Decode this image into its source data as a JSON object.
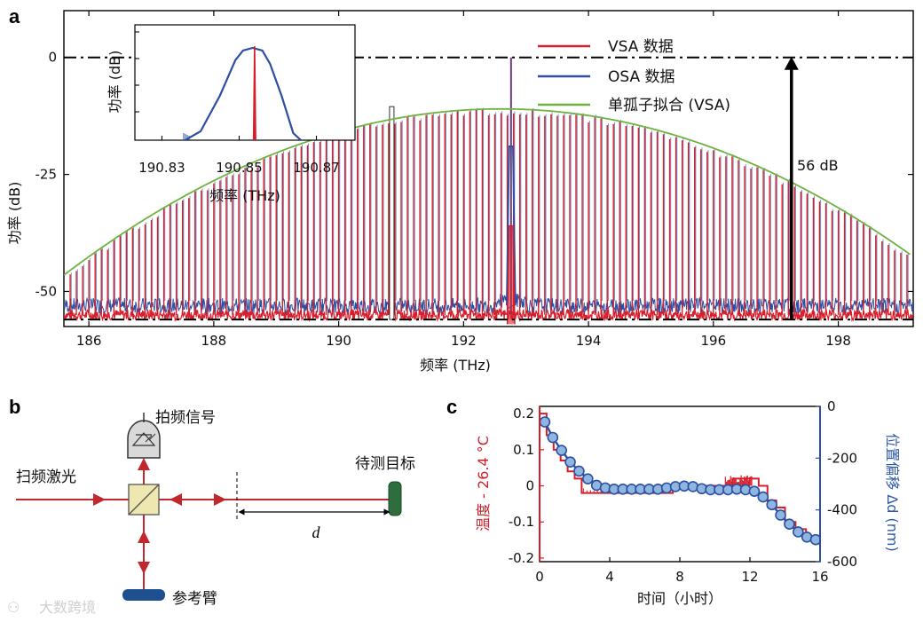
{
  "panels": {
    "a": "a",
    "b": "b",
    "c": "c"
  },
  "chart_data": [
    {
      "id": "a",
      "type": "line",
      "xlabel": "频率 (THz)",
      "ylabel": "功率 (dB)",
      "xlim": [
        185.6,
        199.2
      ],
      "ylim": [
        -57.5,
        10
      ],
      "xticks": [
        186,
        188,
        190,
        192,
        194,
        196,
        198
      ],
      "yticks": [
        0,
        -25,
        -50
      ],
      "series": [
        {
          "name": "VSA 数据",
          "color": "#d81e2b"
        },
        {
          "name": "OSA 数据",
          "color": "#2c4fa3"
        },
        {
          "name": "单孤子拟合 (VSA)",
          "color": "#6cb43f"
        }
      ],
      "comb": {
        "start": 185.7,
        "end": 199.1,
        "spacing": 0.1,
        "peak_x": 192.6,
        "peak_y": -11,
        "fit_width": 2.45,
        "pump_x": 192.76,
        "noise_floor_vsa": -55,
        "noise_floor_osa": -53
      },
      "reference_lines": [
        0,
        -56
      ],
      "annotation": {
        "text": "56 dB",
        "x": 197.25,
        "from": -56,
        "to": 0
      },
      "legend_position": "top-right",
      "inset": {
        "xlabel": "频率 (THz)",
        "ylabel": "功率 (dB)",
        "xlim": [
          190.823,
          190.88
        ],
        "xticks": [
          190.83,
          190.85,
          190.87
        ],
        "osa_peak_x": 190.853,
        "vsa_line_x": 190.854
      }
    },
    {
      "id": "c",
      "type": "line",
      "xlabel": "时间（小时）",
      "ylabel_left": "温度 - 26.4 °C",
      "ylabel_right": "位置偏移 Δd (nm)",
      "xlim": [
        0,
        16
      ],
      "ylim_left": [
        -0.21,
        0.22
      ],
      "ylim_right": [
        -600,
        0
      ],
      "xticks": [
        0,
        4,
        8,
        12,
        16
      ],
      "yticks_left": [
        0.2,
        0.1,
        0,
        -0.1,
        -0.2
      ],
      "yticks_right": [
        0,
        -200,
        -400,
        -600
      ],
      "series": [
        {
          "name": "温度",
          "axis": "left",
          "color": "#d81e2b",
          "x": [
            0,
            0.4,
            0.8,
            1.2,
            1.6,
            2.0,
            2.4,
            2.8,
            3.2,
            6.0,
            7.6,
            8.6,
            10.5,
            11.0,
            12.0,
            12.5,
            13.0,
            13.5,
            14.0,
            14.6,
            15.2,
            15.7
          ],
          "y": [
            0.2,
            0.14,
            0.1,
            0.07,
            0.04,
            0.02,
            -0.02,
            -0.02,
            -0.02,
            -0.02,
            0.0,
            0.0,
            0.0,
            0.02,
            0.02,
            0.0,
            -0.04,
            -0.06,
            -0.1,
            -0.12,
            -0.14,
            -0.16
          ]
        },
        {
          "name": "位置偏移",
          "axis": "right",
          "color": "#2c4fa3",
          "x": [
            0.3,
            0.75,
            1.25,
            1.75,
            2.25,
            2.75,
            3.25,
            3.75,
            4.25,
            4.75,
            5.25,
            5.75,
            6.25,
            6.75,
            7.25,
            7.75,
            8.25,
            8.75,
            9.25,
            9.75,
            10.25,
            10.75,
            11.25,
            11.75,
            12.25,
            12.75,
            13.25,
            13.75,
            14.25,
            14.75,
            15.25,
            15.75
          ],
          "y": [
            -60,
            -120,
            -170,
            -215,
            -250,
            -280,
            -305,
            -315,
            -320,
            -320,
            -320,
            -320,
            -320,
            -320,
            -315,
            -310,
            -308,
            -310,
            -318,
            -322,
            -322,
            -322,
            -320,
            -322,
            -328,
            -350,
            -380,
            -420,
            -455,
            -485,
            -505,
            -515
          ]
        }
      ]
    }
  ],
  "diagram_b": {
    "beat_signal": "拍频信号",
    "swept_laser": "扫频激光",
    "target": "待测目标",
    "distance": "d",
    "reference_arm": "参考臂"
  },
  "watermark": "大数跨境",
  "colors": {
    "red": "#d81e2b",
    "blue": "#2c4fa3",
    "green": "#6cb43f",
    "target_green": "#2e6e3e",
    "arm_blue": "#1e4f8f",
    "bs_fill": "#efe7b0"
  }
}
